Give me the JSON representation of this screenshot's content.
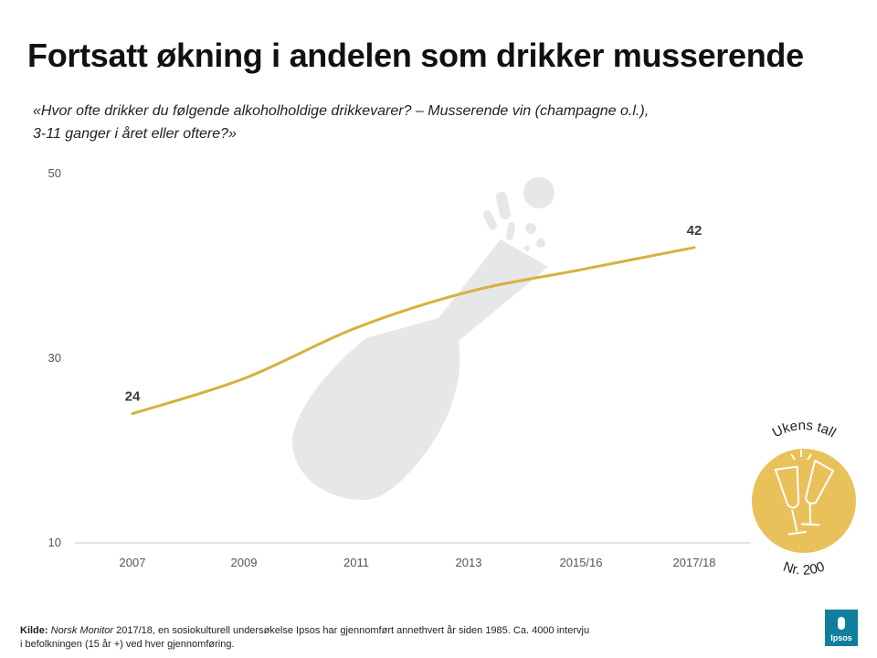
{
  "header": {
    "title": "Fortsatt økning i andelen som drikker musserende",
    "question_line1": "«Hvor ofte drikker du følgende alkoholholdige drikkevarer? – Musserende vin (champagne o.l.),",
    "question_line2": "3-11 ganger i året eller oftere?»"
  },
  "badge": {
    "top_text": "Ukens tall",
    "bottom_text": "Nr. 200",
    "color": "#e8c15a"
  },
  "footer": {
    "source_label": "Kilde:",
    "source_publication": "Norsk  Monitor",
    "source_text_1": " 2017/18, en  sosiokulturell undersøkelse Ipsos har gjennomført annethvert  år siden 1985. Ca. 4000 intervju",
    "source_text_2": "i befolkningen (15 år +) ved hver gjennomføring.",
    "logo_text": "Ipsos"
  },
  "colors": {
    "line": "#d4b23e",
    "bottle": "#e6e7e7",
    "axis": "#c8c8c8",
    "tick_text": "#555555",
    "label_text": "#3a3a3a"
  },
  "chart_data": {
    "type": "line",
    "title": "Fortsatt økning i andelen som drikker musserende",
    "xlabel": "",
    "ylabel": "",
    "categories": [
      "2007",
      "2009",
      "2011",
      "2013",
      "2015/16",
      "2017/18"
    ],
    "series": [
      {
        "name": "Musserende vin 3-11 ganger i året eller oftere",
        "values": [
          24,
          27.8,
          33.3,
          37.2,
          39.6,
          42
        ]
      }
    ],
    "ylim": [
      10,
      50
    ],
    "yticks": [
      10,
      30,
      50
    ],
    "data_labels": [
      {
        "index": 0,
        "text": "24"
      },
      {
        "index": 5,
        "text": "42"
      }
    ],
    "grid": false
  }
}
